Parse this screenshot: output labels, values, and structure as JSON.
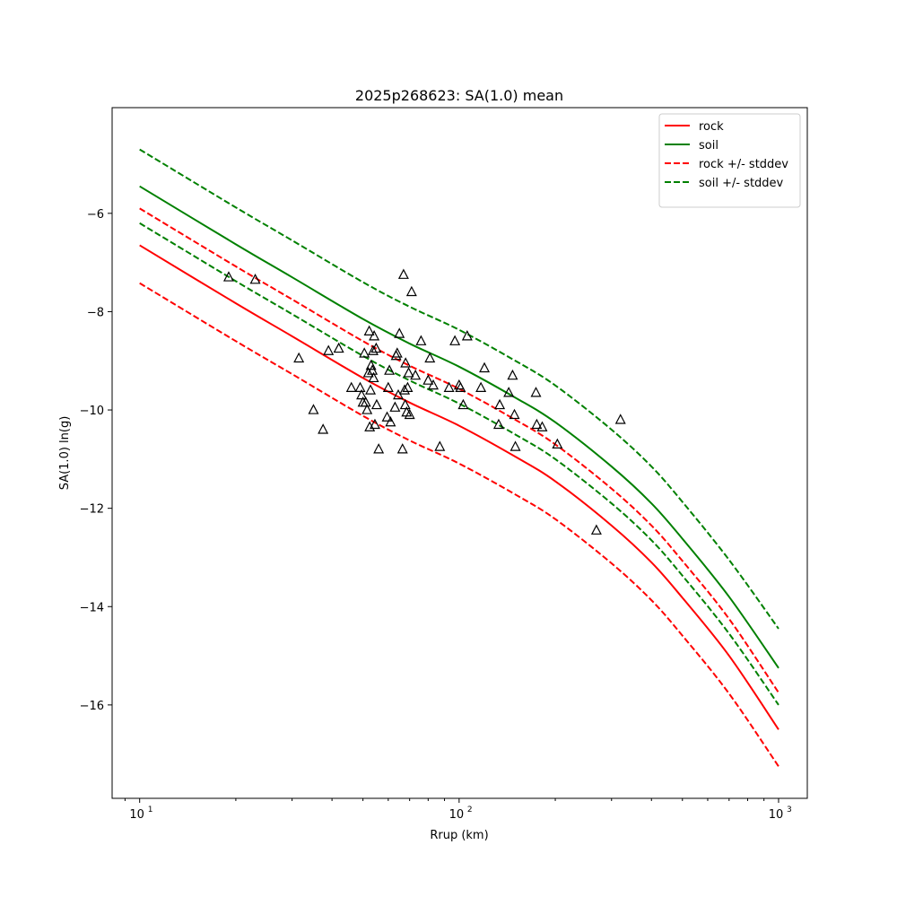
{
  "chart_data": {
    "type": "line",
    "title": "2025p268623: SA(1.0) mean",
    "xlabel": "Rrup (km)",
    "ylabel": "SA(1.0) ln(g)",
    "xscale": "log",
    "xlim": [
      8.2,
      1230
    ],
    "ylim": [
      -17.9,
      -3.85
    ],
    "x_ticks": [
      {
        "value": 10,
        "base": "10",
        "exp": "1"
      },
      {
        "value": 100,
        "base": "10",
        "exp": "2"
      },
      {
        "value": 1000,
        "base": "10",
        "exp": "3"
      }
    ],
    "y_ticks": [
      {
        "value": -6,
        "label": "−6"
      },
      {
        "value": -8,
        "label": "−8"
      },
      {
        "value": -10,
        "label": "−10"
      },
      {
        "value": -12,
        "label": "−12"
      },
      {
        "value": -14,
        "label": "−14"
      },
      {
        "value": -16,
        "label": "−16"
      }
    ],
    "grid": false,
    "legend_position": "top-right",
    "x": [
      10,
      20,
      30,
      50,
      70,
      100,
      150,
      200,
      300,
      400,
      500,
      700,
      1000
    ],
    "series": [
      {
        "name": "rock",
        "color": "#ff0000",
        "dash": false,
        "values": [
          -6.65,
          -7.83,
          -8.5,
          -9.35,
          -9.85,
          -10.32,
          -10.95,
          -11.45,
          -12.35,
          -13.1,
          -13.82,
          -15.0,
          -16.5
        ]
      },
      {
        "name": "soil",
        "color": "#008000",
        "dash": false,
        "values": [
          -5.45,
          -6.63,
          -7.3,
          -8.15,
          -8.65,
          -9.12,
          -9.75,
          -10.25,
          -11.15,
          -11.9,
          -12.62,
          -13.8,
          -15.25
        ]
      },
      {
        "name": "rock +/- stddev",
        "color": "#ff0000",
        "dash": true,
        "legend": true,
        "values": [
          -5.9,
          -7.08,
          -7.75,
          -8.6,
          -9.1,
          -9.57,
          -10.2,
          -10.7,
          -11.6,
          -12.35,
          -13.07,
          -14.25,
          -15.75
        ]
      },
      {
        "name": "rock +/- stddev",
        "color": "#ff0000",
        "dash": true,
        "legend": false,
        "values": [
          -7.42,
          -8.6,
          -9.27,
          -10.12,
          -10.62,
          -11.09,
          -11.72,
          -12.22,
          -13.12,
          -13.87,
          -14.59,
          -15.77,
          -17.25
        ]
      },
      {
        "name": "soil +/- stddev",
        "color": "#008000",
        "dash": true,
        "legend": true,
        "values": [
          -4.7,
          -5.88,
          -6.55,
          -7.4,
          -7.9,
          -8.37,
          -9.0,
          -9.5,
          -10.4,
          -11.15,
          -11.87,
          -13.05,
          -14.45
        ]
      },
      {
        "name": "soil +/- stddev",
        "color": "#008000",
        "dash": true,
        "legend": false,
        "values": [
          -6.2,
          -7.38,
          -8.05,
          -8.9,
          -9.4,
          -9.87,
          -10.5,
          -11.0,
          -11.9,
          -12.65,
          -13.37,
          -14.55,
          -16.0
        ]
      }
    ],
    "observations": [
      [
        19,
        -7.3
      ],
      [
        23,
        -7.35
      ],
      [
        31.5,
        -8.95
      ],
      [
        35,
        -10.0
      ],
      [
        37.5,
        -10.4
      ],
      [
        39,
        -8.8
      ],
      [
        42,
        -8.75
      ],
      [
        46,
        -9.55
      ],
      [
        49,
        -9.55
      ],
      [
        49.5,
        -9.7
      ],
      [
        50,
        -9.85
      ],
      [
        50.5,
        -8.85
      ],
      [
        51,
        -9.85
      ],
      [
        51.5,
        -10.0
      ],
      [
        52,
        -9.25
      ],
      [
        52.3,
        -8.4
      ],
      [
        52.5,
        -10.35
      ],
      [
        52.8,
        -9.6
      ],
      [
        53,
        -9.1
      ],
      [
        53.5,
        -9.2
      ],
      [
        53.8,
        -8.8
      ],
      [
        54,
        -9.35
      ],
      [
        54.2,
        -8.5
      ],
      [
        54.5,
        -10.3
      ],
      [
        55,
        -8.75
      ],
      [
        55.2,
        -9.9
      ],
      [
        56,
        -10.8
      ],
      [
        59.5,
        -10.15
      ],
      [
        60,
        -9.55
      ],
      [
        60.5,
        -9.2
      ],
      [
        61,
        -10.25
      ],
      [
        63,
        -9.95
      ],
      [
        63.5,
        -8.9
      ],
      [
        64,
        -8.85
      ],
      [
        64.5,
        -9.7
      ],
      [
        65,
        -8.45
      ],
      [
        66.5,
        -10.8
      ],
      [
        67,
        -7.25
      ],
      [
        67.5,
        -9.6
      ],
      [
        67.8,
        -9.9
      ],
      [
        68,
        -9.05
      ],
      [
        68.5,
        -10.05
      ],
      [
        69,
        -9.55
      ],
      [
        69.5,
        -9.25
      ],
      [
        70,
        -10.1
      ],
      [
        71,
        -7.6
      ],
      [
        73,
        -9.3
      ],
      [
        76,
        -8.6
      ],
      [
        80,
        -9.4
      ],
      [
        81,
        -8.95
      ],
      [
        83,
        -9.5
      ],
      [
        87,
        -10.75
      ],
      [
        93,
        -9.55
      ],
      [
        97,
        -8.6
      ],
      [
        100,
        -9.5
      ],
      [
        101,
        -9.55
      ],
      [
        103,
        -9.9
      ],
      [
        106,
        -8.5
      ],
      [
        117,
        -9.55
      ],
      [
        120,
        -9.15
      ],
      [
        133,
        -10.3
      ],
      [
        134,
        -9.9
      ],
      [
        143,
        -9.65
      ],
      [
        147,
        -9.3
      ],
      [
        149,
        -10.1
      ],
      [
        150,
        -10.75
      ],
      [
        174,
        -9.65
      ],
      [
        175,
        -10.3
      ],
      [
        182,
        -10.35
      ],
      [
        203,
        -10.7
      ],
      [
        269,
        -12.45
      ],
      [
        320,
        -10.2
      ]
    ]
  }
}
